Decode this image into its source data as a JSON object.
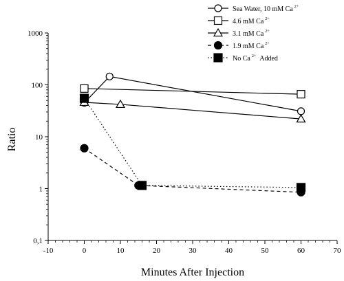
{
  "chart_data": {
    "type": "line",
    "xlabel": "Minutes After Injection",
    "ylabel": "Ratio",
    "xlim": [
      -10,
      70
    ],
    "ylim": [
      0.1,
      1000
    ],
    "yscale": "log",
    "grid": false,
    "legend_position": "top-right",
    "xticks": [
      "-10",
      "0",
      "10",
      "20",
      "30",
      "40",
      "50",
      "60",
      "70"
    ],
    "yticks": [
      "0,1",
      "1",
      "10",
      "100",
      "1000"
    ],
    "series": [
      {
        "name": "Sea Water, 10 mM Ca",
        "sup": "2+",
        "marker": "circle-open",
        "dash": "solid",
        "x": [
          0,
          7,
          60
        ],
        "y": [
          45,
          145,
          31
        ]
      },
      {
        "name": "4.6 mM Ca",
        "sup": "2+",
        "marker": "square-open",
        "dash": "solid",
        "x": [
          0,
          60
        ],
        "y": [
          85,
          66
        ]
      },
      {
        "name": "3.1 mM Ca",
        "sup": "2+",
        "marker": "triangle-open",
        "dash": "solid",
        "x": [
          0,
          10,
          60
        ],
        "y": [
          46,
          42,
          22
        ]
      },
      {
        "name": "1.9 mM Ca",
        "sup": "2+",
        "marker": "circle-filled",
        "dash": "dashed",
        "x": [
          0,
          15,
          60
        ],
        "y": [
          6,
          1.15,
          0.85
        ]
      },
      {
        "name": "No Ca",
        "sup": "2+",
        "name_suffix": "Added",
        "marker": "square-filled",
        "dash": "dotted",
        "x": [
          0,
          16,
          60
        ],
        "y": [
          55,
          1.15,
          1.05
        ]
      }
    ]
  }
}
